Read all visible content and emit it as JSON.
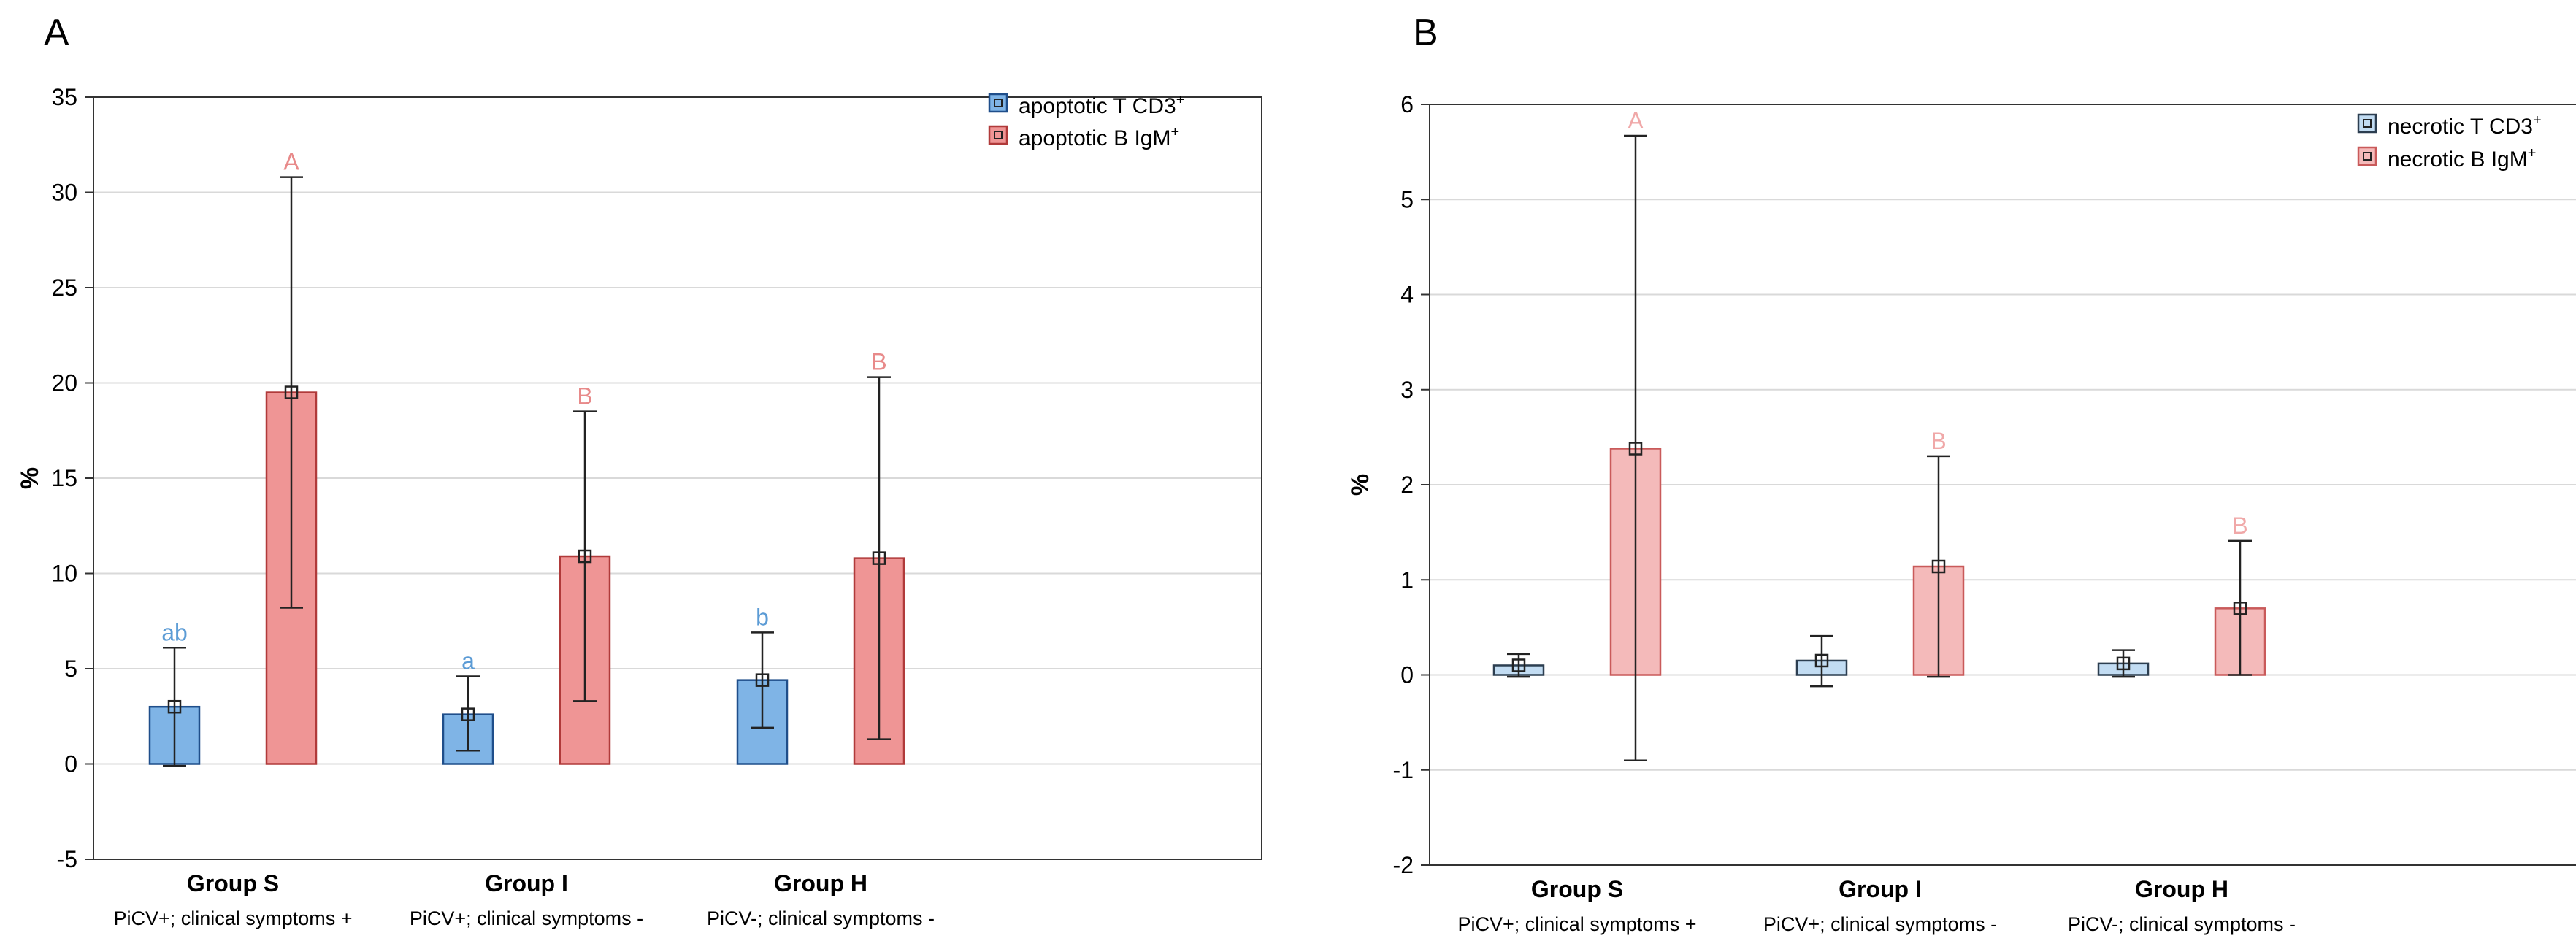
{
  "colors": {
    "blue_fill": "#7fb4e6",
    "blue_stroke": "#1f4e8a",
    "red_fill": "#ef9595",
    "red_stroke": "#b03a3a",
    "blue_light_fill": "#c2dcf2",
    "blue_light_stroke": "#2c3e50",
    "red_light_fill": "#f4baba",
    "red_light_stroke": "#c95a5a",
    "blue_label": "#5b9bd5",
    "red_label": "#e88a8a",
    "red_label_light": "#f0a8a8",
    "grid": "#d9d9d9",
    "axis": "#333333"
  },
  "chart_data": [
    {
      "panel_label": "A",
      "type": "bar",
      "ylabel": "%",
      "ylim": [
        -5,
        35
      ],
      "yticks": [
        -5,
        0,
        5,
        10,
        15,
        20,
        25,
        30,
        35
      ],
      "grid": true,
      "legend_position": "top-right",
      "groups": [
        {
          "name": "Group S",
          "subtitle": "PiCV+; clinical symptoms +"
        },
        {
          "name": "Group I",
          "subtitle": "PiCV+; clinical symptoms -"
        },
        {
          "name": "Group H",
          "subtitle": "PiCV-; clinical symptoms -"
        }
      ],
      "series": [
        {
          "name": "apoptotic T CD3",
          "sup": "+",
          "values": [
            3.0,
            2.6,
            4.4
          ],
          "err_low": [
            -0.1,
            0.7,
            1.9
          ],
          "err_high": [
            6.1,
            4.6,
            6.9
          ],
          "letters": [
            "ab",
            "a",
            "b"
          ]
        },
        {
          "name": "apoptotic B IgM",
          "sup": "+",
          "values": [
            19.5,
            10.9,
            10.8
          ],
          "err_low": [
            8.2,
            3.3,
            1.3
          ],
          "err_high": [
            30.8,
            18.5,
            20.3
          ],
          "letters": [
            "A",
            "B",
            "B"
          ]
        }
      ]
    },
    {
      "panel_label": "B",
      "type": "bar",
      "ylabel": "%",
      "ylim": [
        -2,
        6
      ],
      "yticks": [
        -2,
        -1,
        0,
        1,
        2,
        3,
        4,
        5,
        6
      ],
      "grid": true,
      "legend_position": "top-right",
      "groups": [
        {
          "name": "Group S",
          "subtitle": "PiCV+; clinical symptoms +"
        },
        {
          "name": "Group I",
          "subtitle": "PiCV+; clinical symptoms -"
        },
        {
          "name": "Group H",
          "subtitle": "PiCV-; clinical symptoms -"
        }
      ],
      "series": [
        {
          "name": "necrotic T CD3",
          "sup": "+",
          "values": [
            0.1,
            0.15,
            0.12
          ],
          "err_low": [
            -0.02,
            -0.12,
            -0.02
          ],
          "err_high": [
            0.22,
            0.41,
            0.26
          ],
          "letters": [
            "",
            "",
            ""
          ]
        },
        {
          "name": "necrotic B IgM",
          "sup": "+",
          "values": [
            2.38,
            1.14,
            0.7
          ],
          "err_low": [
            -0.9,
            -0.02,
            0.0
          ],
          "err_high": [
            5.67,
            2.3,
            1.41
          ],
          "letters": [
            "A",
            "B",
            "B"
          ]
        }
      ]
    }
  ]
}
